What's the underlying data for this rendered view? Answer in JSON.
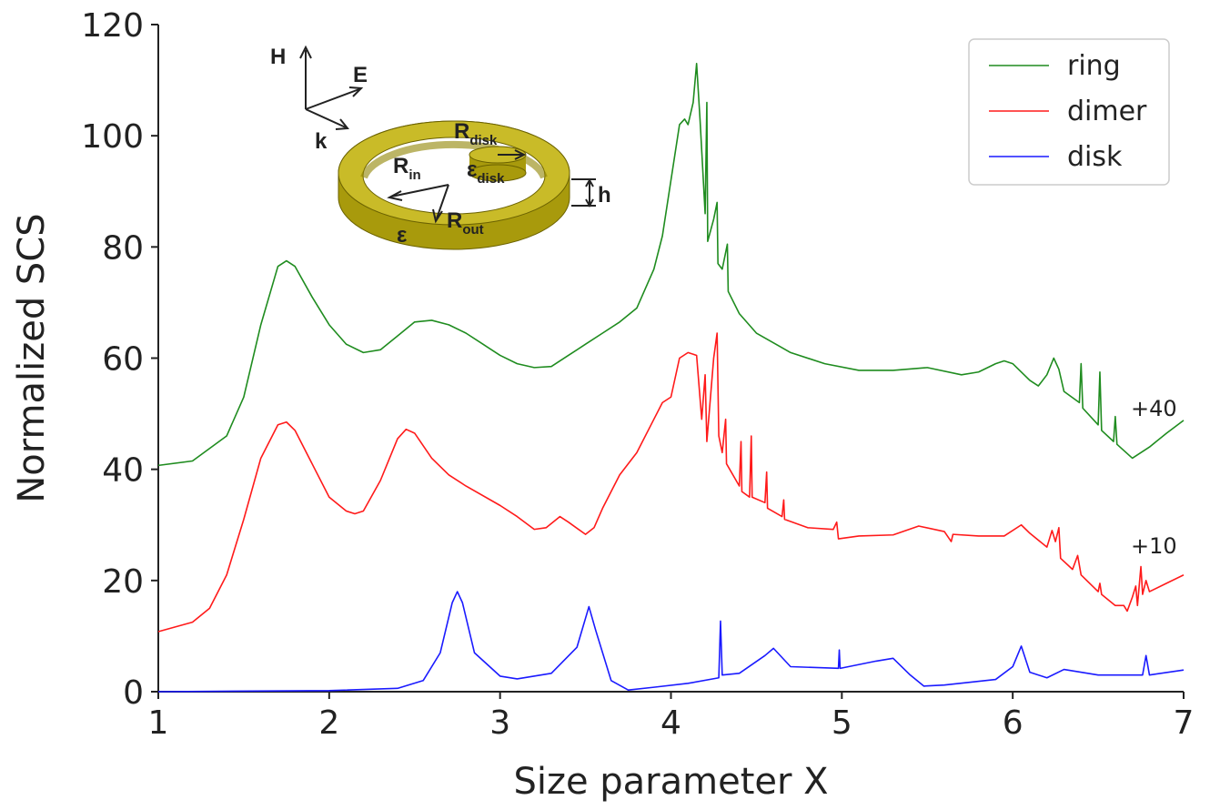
{
  "chart_data": {
    "type": "line",
    "xlabel": "Size parameter X",
    "ylabel": "Normalized SCS",
    "xlim": [
      1,
      7
    ],
    "ylim": [
      0,
      120
    ],
    "xticks": [
      1,
      2,
      3,
      4,
      5,
      6,
      7
    ],
    "yticks": [
      0,
      20,
      40,
      60,
      80,
      100,
      120
    ],
    "legend": "upper right",
    "annotations": [
      "+40",
      "+10"
    ],
    "inset_labels": [
      {
        "text": "H"
      },
      {
        "text": "E"
      },
      {
        "text": "k"
      },
      {
        "text": "R",
        "sub": "disk"
      },
      {
        "text": "R",
        "sub": "in"
      },
      {
        "text": "ε",
        "sub": "disk"
      },
      {
        "text": "R",
        "sub": "out"
      },
      {
        "text": "ε"
      },
      {
        "text": "h"
      }
    ],
    "series": [
      {
        "name": "ring",
        "color": "#1f8c1f",
        "x": [
          1.0,
          1.2,
          1.4,
          1.5,
          1.6,
          1.7,
          1.75,
          1.8,
          1.9,
          2.0,
          2.1,
          2.2,
          2.3,
          2.4,
          2.5,
          2.6,
          2.7,
          2.8,
          2.9,
          3.0,
          3.1,
          3.2,
          3.3,
          3.4,
          3.5,
          3.6,
          3.7,
          3.8,
          3.9,
          3.95,
          4.0,
          4.05,
          4.08,
          4.1,
          4.13,
          4.15,
          4.17,
          4.2,
          4.21,
          4.215,
          4.25,
          4.27,
          4.275,
          4.3,
          4.33,
          4.335,
          4.4,
          4.5,
          4.7,
          4.9,
          5.1,
          5.3,
          5.5,
          5.7,
          5.8,
          5.9,
          5.95,
          6.0,
          6.1,
          6.15,
          6.2,
          6.24,
          6.27,
          6.3,
          6.39,
          6.4,
          6.41,
          6.5,
          6.51,
          6.52,
          6.59,
          6.6,
          6.61,
          6.7,
          6.8,
          6.9,
          7.0
        ],
        "values": [
          40.7,
          41.5,
          46,
          53,
          66,
          76.5,
          77.5,
          76.5,
          71,
          66,
          62.5,
          61,
          61.5,
          64,
          66.5,
          66.8,
          66,
          64.5,
          62.5,
          60.5,
          59,
          58.3,
          58.5,
          60.5,
          62.5,
          64.5,
          66.5,
          69,
          76,
          82,
          92,
          102,
          103,
          102,
          106,
          113,
          103,
          86,
          106,
          81,
          85,
          88,
          77,
          76,
          80.5,
          72,
          68,
          64.5,
          61,
          59,
          57.8,
          57.8,
          58.3,
          57,
          57.5,
          59,
          59.5,
          59,
          56,
          55,
          57,
          60,
          58,
          54,
          52,
          59,
          51,
          48,
          57.5,
          47,
          45,
          49.5,
          44.5,
          42,
          44,
          46.5,
          48.8
        ]
      },
      {
        "name": "dimer",
        "color": "#ff1a1a",
        "x": [
          1.0,
          1.2,
          1.3,
          1.4,
          1.5,
          1.6,
          1.7,
          1.75,
          1.8,
          1.9,
          2.0,
          2.1,
          2.15,
          2.2,
          2.3,
          2.4,
          2.45,
          2.5,
          2.6,
          2.7,
          2.8,
          3.0,
          3.1,
          3.2,
          3.27,
          3.35,
          3.4,
          3.5,
          3.55,
          3.6,
          3.7,
          3.8,
          3.9,
          3.95,
          4.0,
          4.05,
          4.1,
          4.15,
          4.18,
          4.2,
          4.21,
          4.25,
          4.27,
          4.28,
          4.3,
          4.32,
          4.325,
          4.4,
          4.41,
          4.415,
          4.46,
          4.47,
          4.475,
          4.55,
          4.56,
          4.565,
          4.65,
          4.66,
          4.665,
          4.8,
          4.95,
          4.97,
          4.98,
          5.1,
          5.3,
          5.45,
          5.6,
          5.64,
          5.65,
          5.8,
          5.95,
          6.05,
          6.1,
          6.2,
          6.23,
          6.25,
          6.27,
          6.28,
          6.35,
          6.38,
          6.4,
          6.5,
          6.51,
          6.52,
          6.6,
          6.65,
          6.67,
          6.7,
          6.72,
          6.73,
          6.75,
          6.76,
          6.78,
          6.8,
          6.9,
          7.0
        ],
        "values": [
          10.8,
          12.5,
          15,
          21,
          31,
          42,
          48,
          48.5,
          47,
          41,
          35,
          32.5,
          32,
          32.5,
          38,
          45.5,
          47.2,
          46.5,
          42,
          39,
          37,
          33.5,
          31.5,
          29.2,
          29.5,
          31.5,
          30.5,
          28.3,
          29.5,
          33,
          39,
          43,
          49,
          52,
          53,
          60,
          61,
          60.5,
          49,
          57,
          45,
          60,
          64.5,
          46,
          43,
          49,
          41,
          37,
          45,
          36,
          35,
          46,
          35,
          34,
          39.5,
          33,
          31.5,
          34.5,
          31,
          29.5,
          29.2,
          30.5,
          27.5,
          28,
          28.2,
          29.8,
          28.8,
          27,
          28.3,
          28,
          28,
          30,
          28.5,
          26,
          29,
          27,
          29.5,
          24,
          22,
          24.5,
          21,
          18,
          19.5,
          17.5,
          15.5,
          15.5,
          14.5,
          17,
          19,
          15.5,
          22.5,
          17.5,
          20,
          18,
          19.5,
          21
        ]
      },
      {
        "name": "disk",
        "color": "#1a1aff",
        "x": [
          1.0,
          2.0,
          2.4,
          2.55,
          2.65,
          2.72,
          2.75,
          2.78,
          2.85,
          3.0,
          3.1,
          3.3,
          3.45,
          3.52,
          3.56,
          3.65,
          3.75,
          3.9,
          4.1,
          4.28,
          4.29,
          4.3,
          4.4,
          4.55,
          4.6,
          4.7,
          4.98,
          4.985,
          4.99,
          5.2,
          5.3,
          5.4,
          5.48,
          5.6,
          5.9,
          6.0,
          6.05,
          6.1,
          6.2,
          6.3,
          6.5,
          6.76,
          6.78,
          6.8,
          7.0
        ],
        "values": [
          0,
          0.2,
          0.6,
          2,
          7,
          16,
          18,
          16,
          7,
          2.8,
          2.3,
          3.3,
          8,
          15.3,
          11,
          2,
          0.3,
          0.8,
          1.5,
          2.5,
          12.7,
          3,
          3.3,
          6.5,
          7.8,
          4.5,
          4.2,
          7.5,
          4.2,
          5.5,
          6,
          3,
          1,
          1.2,
          2.2,
          4.5,
          8.2,
          3.5,
          2.5,
          4,
          3,
          3,
          6.5,
          3,
          3.9
        ]
      }
    ]
  }
}
